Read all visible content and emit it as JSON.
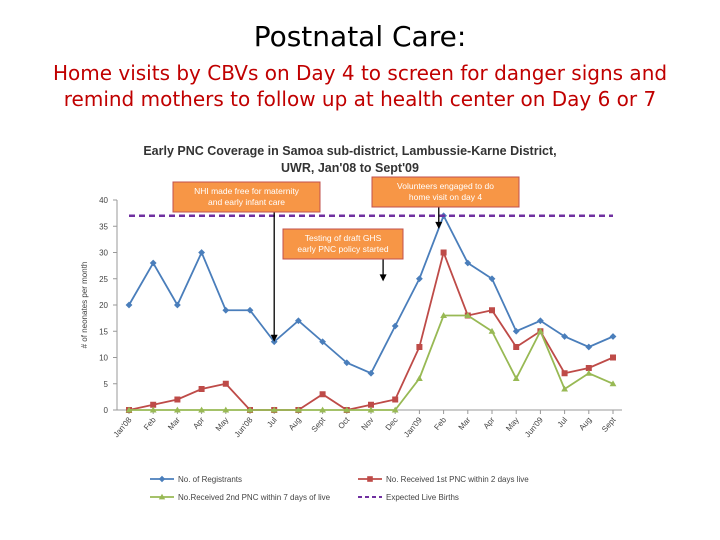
{
  "slide": {
    "title": "Postnatal Care:",
    "subtitle_line1": "Home visits by CBVs on Day 4 to screen for danger signs and",
    "subtitle_line2": "remind mothers to follow up at health center on Day 6 or 7"
  },
  "chart_data": {
    "type": "line",
    "title_lines": [
      "Early PNC Coverage in Samoa sub-district, Lambussie-Karne District,",
      "UWR, Jan'08 to Sept'09"
    ],
    "xlabel": "",
    "ylabel": "# of neonates per month",
    "ylim": [
      0,
      40
    ],
    "yticks": [
      0,
      5,
      10,
      15,
      20,
      25,
      30,
      35,
      40
    ],
    "grid": false,
    "legend_position": "bottom",
    "categories": [
      "Jan'08",
      "Feb",
      "Mar",
      "Apr",
      "May",
      "Jun'08",
      "Jul",
      "Aug",
      "Sept",
      "Oct",
      "Nov",
      "Dec",
      "Jan'09",
      "Feb",
      "Mar",
      "Apr",
      "May",
      "Jun'09",
      "Jul",
      "Aug",
      "Sept"
    ],
    "series": [
      {
        "name": "No. of Registrants",
        "color": "#4a7ebb",
        "marker": "diamond",
        "values": [
          20,
          28,
          20,
          30,
          19,
          19,
          13,
          17,
          13,
          9,
          7,
          16,
          25,
          37,
          28,
          25,
          15,
          17,
          14,
          12,
          14
        ]
      },
      {
        "name": "No. Received 1st PNC within 2 days live",
        "color": "#be4b48",
        "marker": "square",
        "values": [
          0,
          1,
          2,
          4,
          5,
          0,
          0,
          0,
          3,
          0,
          1,
          2,
          12,
          30,
          18,
          19,
          12,
          15,
          7,
          8,
          10
        ]
      },
      {
        "name": "No.Received 2nd PNC within 7 days of live",
        "color": "#98b954",
        "marker": "triangle",
        "values": [
          0,
          0,
          0,
          0,
          0,
          0,
          0,
          0,
          0,
          0,
          0,
          0,
          6,
          18,
          18,
          15,
          6,
          15,
          4,
          7,
          5
        ]
      },
      {
        "name": "Expected Live Births",
        "color": "#7030a0",
        "style": "dashed",
        "values": [
          37,
          37,
          37,
          37,
          37,
          37,
          37,
          37,
          37,
          37,
          37,
          37,
          37,
          37,
          37,
          37,
          37,
          37,
          37,
          37,
          37
        ]
      }
    ],
    "annotations": [
      {
        "lines": [
          "NHI made free for maternity",
          "and early infant care"
        ],
        "arrow_to_category_index": 6,
        "arrow_to_value": 13
      },
      {
        "lines": [
          "Volunteers  engaged to do",
          "home visit on  day 4"
        ],
        "arrow_to_category_index": 12.8,
        "arrow_to_value": 34.5
      },
      {
        "lines": [
          "Testing of draft GHS",
          "early PNC policy started"
        ],
        "arrow_to_category_index": 10.5,
        "arrow_to_value": 24.5
      }
    ],
    "annotation_fill": "#f79646",
    "annotation_border": "#c0504d"
  }
}
